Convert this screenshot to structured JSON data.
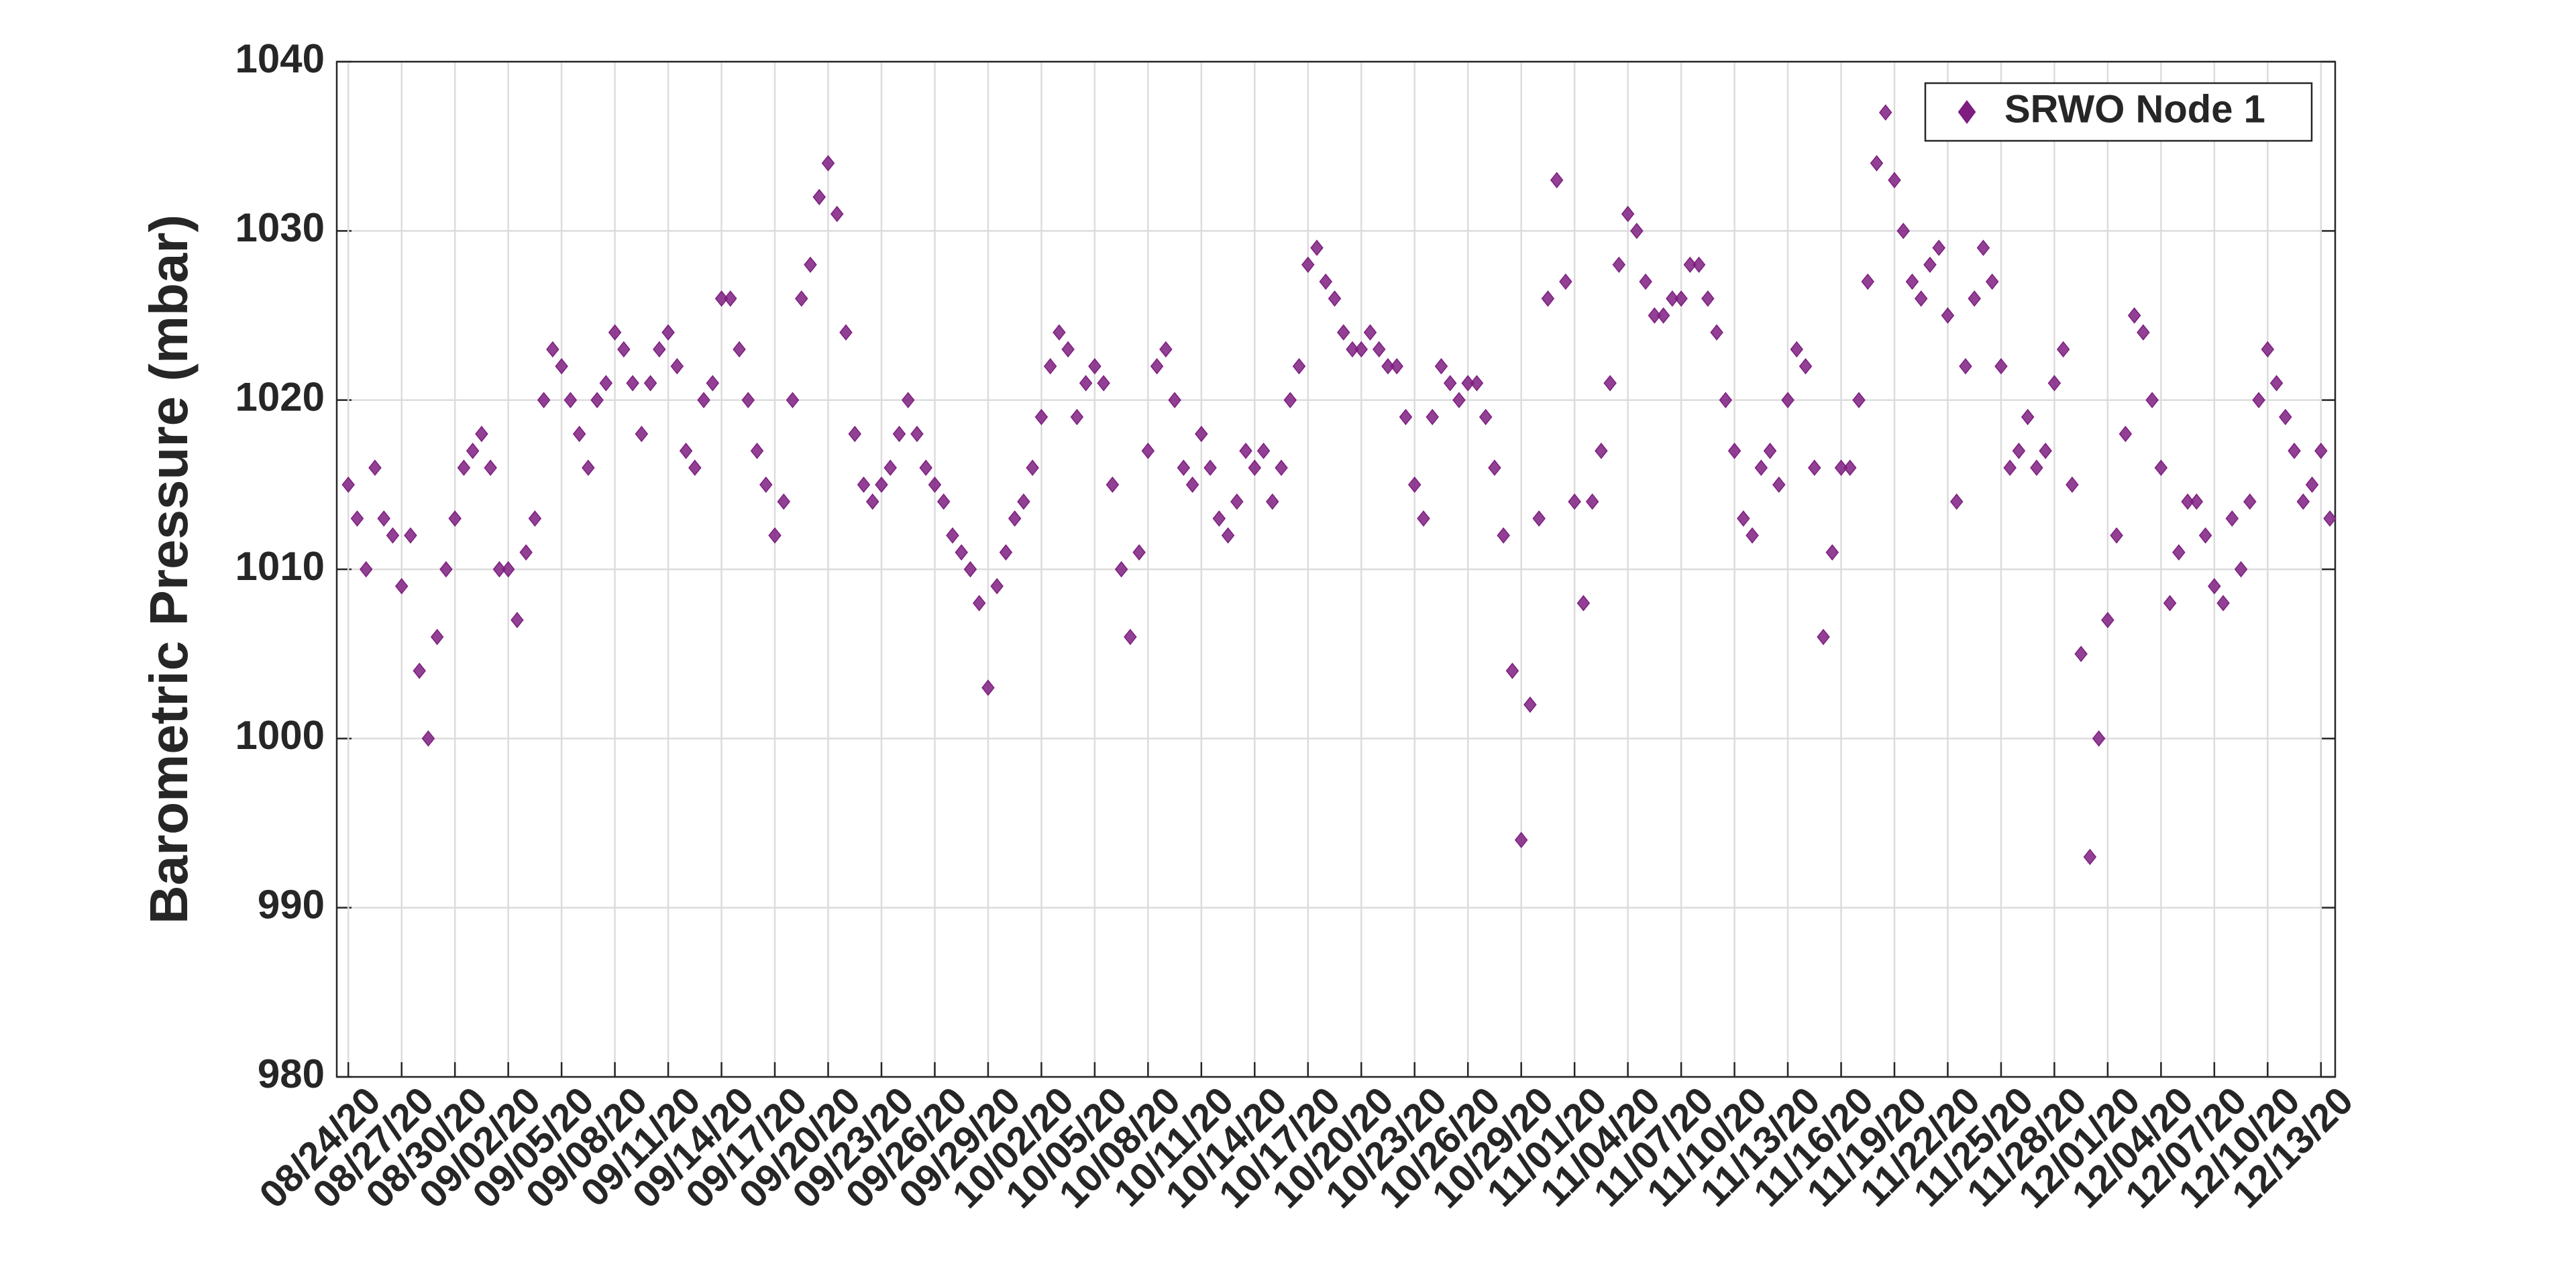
{
  "chart_data": {
    "type": "scatter",
    "y_label": "Barometric Pressure (mbar)",
    "x": [
      0,
      0.5,
      1,
      1.5,
      2,
      2.5,
      3,
      3.5,
      4,
      4.5,
      5,
      5.5,
      6,
      6.5,
      7,
      7.5,
      8,
      8.5,
      9,
      9.5,
      10,
      10.5,
      11,
      11.5,
      12,
      12.5,
      13,
      13.5,
      14,
      14.5,
      15,
      15.5,
      16,
      16.5,
      17,
      17.5,
      18,
      18.5,
      19,
      19.5,
      20,
      20.5,
      21,
      21.5,
      22,
      22.5,
      23,
      23.5,
      24,
      24.5,
      25,
      25.5,
      26,
      26.5,
      27,
      27.5,
      28,
      28.5,
      29,
      29.5,
      30,
      30.5,
      31,
      31.5,
      32,
      32.5,
      33,
      33.5,
      34,
      34.5,
      35,
      35.5,
      36,
      36.5,
      37,
      37.5,
      38,
      38.5,
      39,
      39.5,
      40,
      40.5,
      41,
      41.5,
      42,
      42.5,
      43,
      43.5,
      44,
      44.5,
      45,
      45.5,
      46,
      46.5,
      47,
      47.5,
      48,
      48.5,
      49,
      49.5,
      50,
      50.5,
      51,
      51.5,
      52,
      52.5,
      53,
      53.5,
      54,
      54.5,
      55,
      55.5,
      56,
      56.5,
      57,
      57.5,
      58,
      58.5,
      59,
      59.5,
      60,
      60.5,
      61,
      61.5,
      62,
      62.5,
      63,
      63.5,
      64,
      64.5,
      65,
      65.5,
      66,
      66.5,
      67,
      67.5,
      68,
      68.5,
      69,
      69.5,
      70,
      70.5,
      71,
      71.5,
      72,
      72.5,
      73,
      73.5,
      74,
      74.5,
      75,
      75.5,
      76,
      76.5,
      77,
      77.5,
      78,
      78.5,
      79,
      79.5,
      80,
      80.5,
      81,
      81.5,
      82,
      82.5,
      83,
      83.5,
      84,
      84.5,
      85,
      85.5,
      86,
      86.5,
      87,
      87.5,
      88,
      88.5,
      89,
      89.5,
      90,
      90.5,
      91,
      91.5,
      92,
      92.5,
      93,
      93.5,
      94,
      94.5,
      95,
      95.5,
      96,
      96.5,
      97,
      97.5,
      98,
      98.5,
      99,
      99.5,
      100,
      100.5,
      101,
      101.5,
      102,
      102.5,
      103,
      103.5,
      104,
      104.5,
      105,
      105.5,
      106,
      106.5,
      107,
      107.5,
      108,
      108.5,
      109,
      109.5,
      110,
      110.5,
      111,
      111.5
    ],
    "series": [
      {
        "name": "SRWO Node 1",
        "color": "#7e1e80",
        "marker": "diamond",
        "values": [
          1015,
          1013,
          1010,
          1016,
          1013,
          1012,
          1009,
          1012,
          1004,
          1000,
          1006,
          1010,
          1013,
          1016,
          1017,
          1018,
          1016,
          1010,
          1010,
          1007,
          1011,
          1013,
          1020,
          1023,
          1022,
          1020,
          1018,
          1016,
          1020,
          1021,
          1024,
          1023,
          1021,
          1018,
          1021,
          1023,
          1024,
          1022,
          1017,
          1016,
          1020,
          1021,
          1026,
          1026,
          1023,
          1020,
          1017,
          1015,
          1012,
          1014,
          1020,
          1026,
          1028,
          1032,
          1034,
          1031,
          1024,
          1018,
          1015,
          1014,
          1015,
          1016,
          1018,
          1020,
          1018,
          1016,
          1015,
          1014,
          1012,
          1011,
          1010,
          1008,
          1003,
          1009,
          1011,
          1013,
          1014,
          1016,
          1019,
          1022,
          1024,
          1023,
          1019,
          1021,
          1022,
          1021,
          1015,
          1010,
          1006,
          1011,
          1017,
          1022,
          1023,
          1020,
          1016,
          1015,
          1018,
          1016,
          1013,
          1012,
          1014,
          1017,
          1016,
          1017,
          1014,
          1016,
          1020,
          1022,
          1028,
          1029,
          1027,
          1026,
          1024,
          1023,
          1023,
          1024,
          1023,
          1022,
          1022,
          1019,
          1015,
          1013,
          1019,
          1022,
          1021,
          1020,
          1021,
          1021,
          1019,
          1016,
          1012,
          1004,
          994,
          1002,
          1013,
          1026,
          1033,
          1027,
          1014,
          1008,
          1014,
          1017,
          1021,
          1028,
          1031,
          1030,
          1027,
          1025,
          1025,
          1026,
          1026,
          1028,
          1028,
          1026,
          1024,
          1020,
          1017,
          1013,
          1012,
          1016,
          1017,
          1015,
          1020,
          1023,
          1022,
          1016,
          1006,
          1011,
          1016,
          1016,
          1020,
          1027,
          1034,
          1037,
          1033,
          1030,
          1027,
          1026,
          1028,
          1029,
          1025,
          1014,
          1022,
          1026,
          1029,
          1027,
          1022,
          1016,
          1017,
          1019,
          1016,
          1017,
          1021,
          1023,
          1015,
          1005,
          993,
          1000,
          1007,
          1012,
          1018,
          1025,
          1024,
          1020,
          1016,
          1008,
          1011,
          1014,
          1014,
          1012,
          1009,
          1008,
          1013,
          1010,
          1014,
          1020,
          1023,
          1021,
          1019,
          1017,
          1014,
          1015,
          1017,
          1013
        ]
      }
    ],
    "xlim": [
      -0.65,
      111.8
    ],
    "xticks": [
      {
        "value": 0,
        "label": "08/24/20"
      },
      {
        "value": 3,
        "label": "08/27/20"
      },
      {
        "value": 6,
        "label": "08/30/20"
      },
      {
        "value": 9,
        "label": "09/02/20"
      },
      {
        "value": 12,
        "label": "09/05/20"
      },
      {
        "value": 15,
        "label": "09/08/20"
      },
      {
        "value": 18,
        "label": "09/11/20"
      },
      {
        "value": 21,
        "label": "09/14/20"
      },
      {
        "value": 24,
        "label": "09/17/20"
      },
      {
        "value": 27,
        "label": "09/20/20"
      },
      {
        "value": 30,
        "label": "09/23/20"
      },
      {
        "value": 33,
        "label": "09/26/20"
      },
      {
        "value": 36,
        "label": "09/29/20"
      },
      {
        "value": 39,
        "label": "10/02/20"
      },
      {
        "value": 42,
        "label": "10/05/20"
      },
      {
        "value": 45,
        "label": "10/08/20"
      },
      {
        "value": 48,
        "label": "10/11/20"
      },
      {
        "value": 51,
        "label": "10/14/20"
      },
      {
        "value": 54,
        "label": "10/17/20"
      },
      {
        "value": 57,
        "label": "10/20/20"
      },
      {
        "value": 60,
        "label": "10/23/20"
      },
      {
        "value": 63,
        "label": "10/26/20"
      },
      {
        "value": 66,
        "label": "10/29/20"
      },
      {
        "value": 69,
        "label": "11/01/20"
      },
      {
        "value": 72,
        "label": "11/04/20"
      },
      {
        "value": 75,
        "label": "11/07/20"
      },
      {
        "value": 78,
        "label": "11/10/20"
      },
      {
        "value": 81,
        "label": "11/13/20"
      },
      {
        "value": 84,
        "label": "11/16/20"
      },
      {
        "value": 87,
        "label": "11/19/20"
      },
      {
        "value": 90,
        "label": "11/22/20"
      },
      {
        "value": 93,
        "label": "11/25/20"
      },
      {
        "value": 96,
        "label": "11/28/20"
      },
      {
        "value": 99,
        "label": "12/01/20"
      },
      {
        "value": 102,
        "label": "12/04/20"
      },
      {
        "value": 105,
        "label": "12/07/20"
      },
      {
        "value": 108,
        "label": "12/10/20"
      },
      {
        "value": 111,
        "label": "12/13/20"
      }
    ],
    "ylim": [
      980,
      1040
    ],
    "yticks": [
      980,
      990,
      1000,
      1010,
      1020,
      1030,
      1040
    ],
    "grid": true,
    "legend": "northeast"
  }
}
